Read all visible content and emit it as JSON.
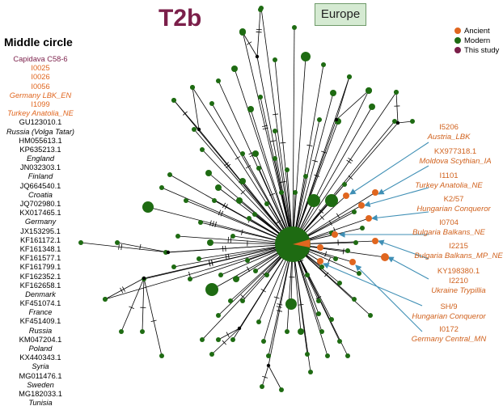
{
  "title": "T2b",
  "region_box": "Europe",
  "middle_circle": {
    "heading": "Middle circle",
    "entries": [
      {
        "text": "Capidava C58-6",
        "style": "study"
      },
      {
        "text": "I0025",
        "style": "ancient"
      },
      {
        "text": "I0026",
        "style": "ancient"
      },
      {
        "text": "I0056",
        "style": "ancient"
      },
      {
        "text": "Germany LBK_EN",
        "style": "ancient-region"
      },
      {
        "text": "I1099",
        "style": "ancient"
      },
      {
        "text": "Turkey Anatolia_NE",
        "style": "ancient-region"
      },
      {
        "text": "GU123010.1",
        "style": "modern"
      },
      {
        "text": "Russia (Volga Tatar)",
        "style": "modern-region"
      },
      {
        "text": "HM055613.1",
        "style": "modern"
      },
      {
        "text": "KP635213.1",
        "style": "modern"
      },
      {
        "text": "England",
        "style": "modern-region"
      },
      {
        "text": "JN032303.1",
        "style": "modern"
      },
      {
        "text": "Finland",
        "style": "modern-region"
      },
      {
        "text": "JQ664540.1",
        "style": "modern"
      },
      {
        "text": "Croatia",
        "style": "modern-region"
      },
      {
        "text": "JQ702980.1",
        "style": "modern"
      },
      {
        "text": "KX017465.1",
        "style": "modern"
      },
      {
        "text": "Germany",
        "style": "modern-region"
      },
      {
        "text": "JX153295.1",
        "style": "modern"
      },
      {
        "text": "KF161172.1",
        "style": "modern"
      },
      {
        "text": "KF161348.1",
        "style": "modern"
      },
      {
        "text": "KF161577.1",
        "style": "modern"
      },
      {
        "text": "KF161799.1",
        "style": "modern"
      },
      {
        "text": "KF162352.1",
        "style": "modern"
      },
      {
        "text": "KF162658.1",
        "style": "modern"
      },
      {
        "text": "Denmark",
        "style": "modern-region"
      },
      {
        "text": "KF451074.1",
        "style": "modern"
      },
      {
        "text": "France",
        "style": "modern-region"
      },
      {
        "text": "KF451409.1",
        "style": "modern"
      },
      {
        "text": "Russia",
        "style": "modern-region"
      },
      {
        "text": "KM047204.1",
        "style": "modern"
      },
      {
        "text": "Poland",
        "style": "modern-region"
      },
      {
        "text": "KX440343.1",
        "style": "modern"
      },
      {
        "text": "Syria",
        "style": "modern-region"
      },
      {
        "text": "MG011476.1",
        "style": "modern"
      },
      {
        "text": "Sweden",
        "style": "modern-region"
      },
      {
        "text": "MG182033.1",
        "style": "modern"
      },
      {
        "text": "Tunisia",
        "style": "modern-region"
      }
    ]
  },
  "legend": [
    {
      "label": "Ancient",
      "color": "#e0661f"
    },
    {
      "label": "Modern",
      "color": "#1e6b12"
    },
    {
      "label": "This study",
      "color": "#7b1f4a"
    }
  ],
  "ancient_labels": [
    {
      "id": "I5206",
      "region": "Austria_LBK"
    },
    {
      "id": "KX977318.1",
      "region": "Moldova Scythian_IA"
    },
    {
      "id": "I1101",
      "region": "Turkey Anatolia_NE"
    },
    {
      "id": "K2/57",
      "region": "Hungarian Conqueror"
    },
    {
      "id": "I0704",
      "region": "Bulgaria Balkans_NE"
    },
    {
      "id": "I2215",
      "region": "Bulgaria Balkans_MP_NE"
    },
    {
      "id": "KY198380.1",
      "region": ""
    },
    {
      "id": "I2210",
      "region": "Ukraine Trypillia"
    },
    {
      "id": "SH/9",
      "region": "Hungarian Conqueror"
    },
    {
      "id": "I0172",
      "region": "Germany Central_MN"
    }
  ],
  "colors": {
    "title": "#7b1f4a",
    "modern_node": "#1e6b12",
    "ancient_node": "#e0661f",
    "this_study": "#7b1f4a",
    "arrow": "#3f8fb5",
    "edge": "#000000"
  }
}
